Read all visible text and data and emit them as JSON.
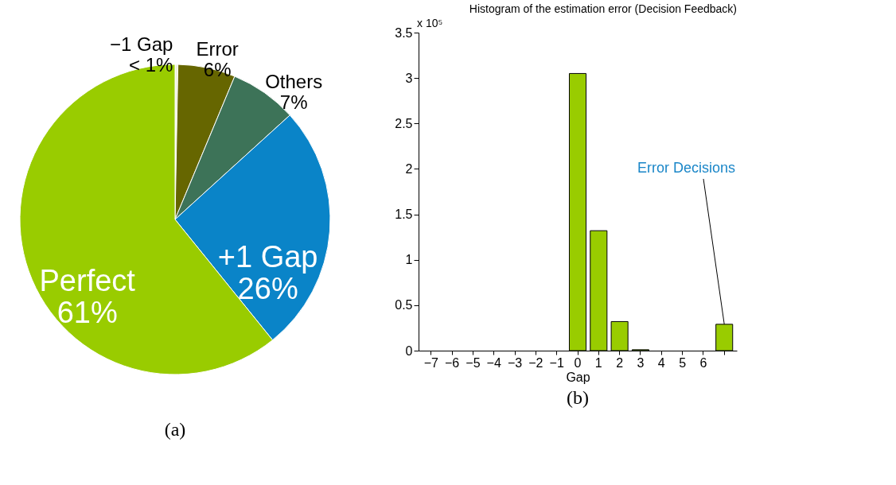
{
  "chart_data": [
    {
      "type": "pie",
      "categories": [
        "−1 Gap",
        "Error",
        "Others",
        "+1 Gap",
        "Perfect"
      ],
      "values": [
        0.3,
        6,
        7,
        26,
        61
      ],
      "value_labels": [
        "< 1%",
        "6%",
        "7%",
        "26%",
        "61%"
      ],
      "colors": [
        "#f0f0e0",
        "#666600",
        "#3d7358",
        "#0a84c8",
        "#99cc00"
      ],
      "annotations": [
        "(a)"
      ]
    },
    {
      "type": "bar",
      "title": "Histogram of the estimation error (Decision Feedback)",
      "xlabel": "Gap",
      "categories": [
        "−7",
        "−6",
        "−5",
        "−4",
        "−3",
        "−2",
        "−1",
        "0",
        "1",
        "2",
        "3",
        "4",
        "5",
        "6",
        null
      ],
      "values": [
        0,
        0,
        0,
        0,
        0,
        0,
        0,
        3.05,
        1.32,
        0.32,
        0.01,
        0,
        0,
        0,
        0.29
      ],
      "color": "#99cc00",
      "ylim": [
        0,
        3.5
      ],
      "yticks": [
        0,
        0.5,
        1,
        1.5,
        2,
        2.5,
        3,
        3.5
      ],
      "annotations": [
        "x 10⁵",
        "Error Decisions",
        "(b)"
      ]
    }
  ]
}
